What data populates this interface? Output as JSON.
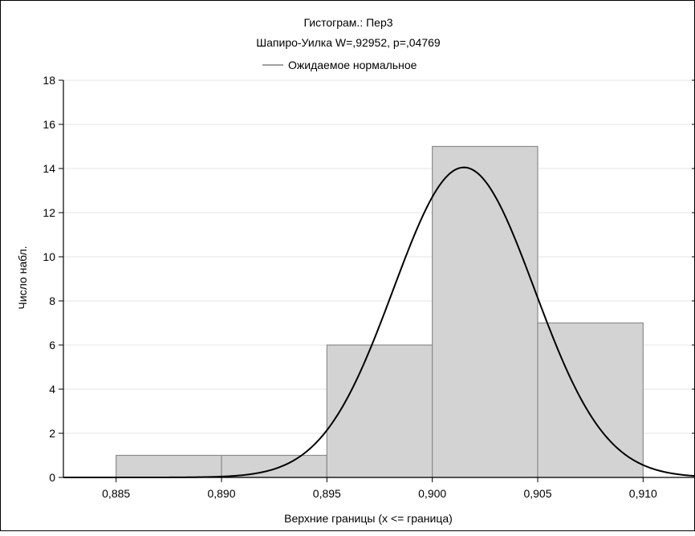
{
  "chart_data": {
    "type": "histogram",
    "title": "Гистограм.: Пер3",
    "subtitle": "Шапиро-Уилка W=,92952, p=,04769",
    "legend": {
      "label": "Ожидаемое нормальное",
      "position": "top-center"
    },
    "xlabel": "Верхние границы (x <= граница)",
    "ylabel": "Число набл.",
    "xlim": [
      0.8825,
      0.9125
    ],
    "ylim": [
      0,
      18
    ],
    "x_ticks": [
      0.885,
      0.89,
      0.895,
      0.9,
      0.905,
      0.91
    ],
    "x_tick_labels": [
      "0,885",
      "0,890",
      "0,895",
      "0,900",
      "0,905",
      "0,910"
    ],
    "y_ticks": [
      0,
      2,
      4,
      6,
      8,
      10,
      12,
      14,
      16,
      18
    ],
    "y_tick_labels": [
      "0",
      "2",
      "4",
      "6",
      "8",
      "10",
      "12",
      "14",
      "16",
      "18"
    ],
    "bins": [
      {
        "lower": 0.885,
        "upper": 0.89,
        "count": 1
      },
      {
        "lower": 0.89,
        "upper": 0.895,
        "count": 1
      },
      {
        "lower": 0.895,
        "upper": 0.9,
        "count": 6
      },
      {
        "lower": 0.9,
        "upper": 0.905,
        "count": 15
      },
      {
        "lower": 0.905,
        "upper": 0.91,
        "count": 7
      }
    ],
    "normal_curve": {
      "mean": 0.9015,
      "peak_count": 14.05,
      "sd": 0.00335
    },
    "grid": true,
    "colors": {
      "bar_fill": "#d3d3d3",
      "bar_stroke": "#8c8c8c",
      "curve": "#000000",
      "grid": "#e6e6e6",
      "legend_line": "#808080"
    }
  }
}
